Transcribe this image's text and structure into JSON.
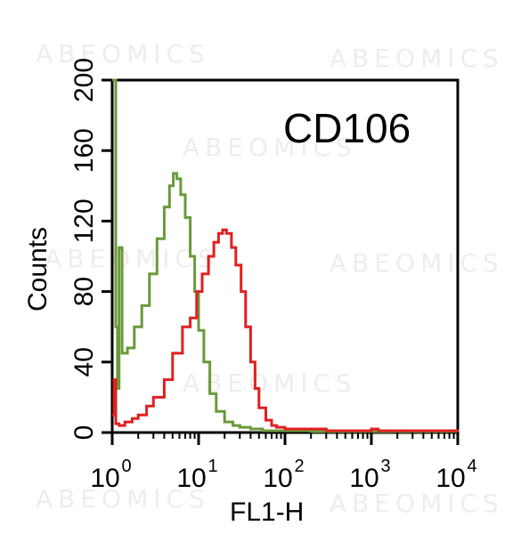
{
  "watermark": "ABEOMICS",
  "chart_data": {
    "type": "line",
    "title": "CD106",
    "xlabel": "FL1-H",
    "ylabel": "Counts",
    "xscale": "log",
    "xlim": [
      1,
      10000
    ],
    "ylim": [
      0,
      200
    ],
    "x_ticks": [
      {
        "value": 1,
        "base": "10",
        "exp": "0"
      },
      {
        "value": 10,
        "base": "10",
        "exp": "1"
      },
      {
        "value": 100,
        "base": "10",
        "exp": "2"
      },
      {
        "value": 1000,
        "base": "10",
        "exp": "3"
      },
      {
        "value": 10000,
        "base": "10",
        "exp": "4"
      }
    ],
    "y_ticks": [
      0,
      40,
      80,
      120,
      160,
      200
    ],
    "grid": false,
    "legend": "none",
    "series": [
      {
        "color": "#6a9a3a",
        "x": [
          1.0,
          1.05,
          1.1,
          1.15,
          1.2,
          1.3,
          1.5,
          1.8,
          2.2,
          2.7,
          3.3,
          4.0,
          4.6,
          5.1,
          5.6,
          6.2,
          7.0,
          8.0,
          9.0,
          10.0,
          11.5,
          13.5,
          16,
          20,
          25,
          30,
          40,
          55,
          80,
          120,
          200,
          500,
          1000,
          10000
        ],
        "y": [
          200,
          200,
          60,
          25,
          105,
          45,
          48,
          60,
          72,
          90,
          110,
          128,
          140,
          147,
          144,
          135,
          122,
          100,
          80,
          58,
          40,
          22,
          12,
          6,
          4,
          3,
          2,
          1,
          1,
          1,
          0.5,
          0.5,
          0.5,
          0.5
        ]
      },
      {
        "color": "#e02020",
        "x": [
          1.0,
          1.05,
          1.1,
          1.2,
          1.4,
          1.7,
          2.0,
          2.5,
          3.0,
          4.0,
          5.0,
          6.5,
          8.0,
          9.5,
          11,
          13,
          15,
          17,
          19,
          21,
          24,
          27,
          31,
          35,
          40,
          45,
          50,
          60,
          70,
          80,
          100,
          150,
          300,
          600,
          1000,
          1200,
          2000,
          10000
        ],
        "y": [
          10,
          30,
          5,
          4,
          6,
          8,
          10,
          15,
          20,
          30,
          45,
          60,
          65,
          80,
          90,
          100,
          108,
          113,
          115,
          113,
          105,
          95,
          80,
          60,
          40,
          25,
          14,
          7,
          4,
          3,
          2,
          2,
          1,
          1,
          2,
          1,
          1,
          0.5
        ]
      }
    ]
  }
}
